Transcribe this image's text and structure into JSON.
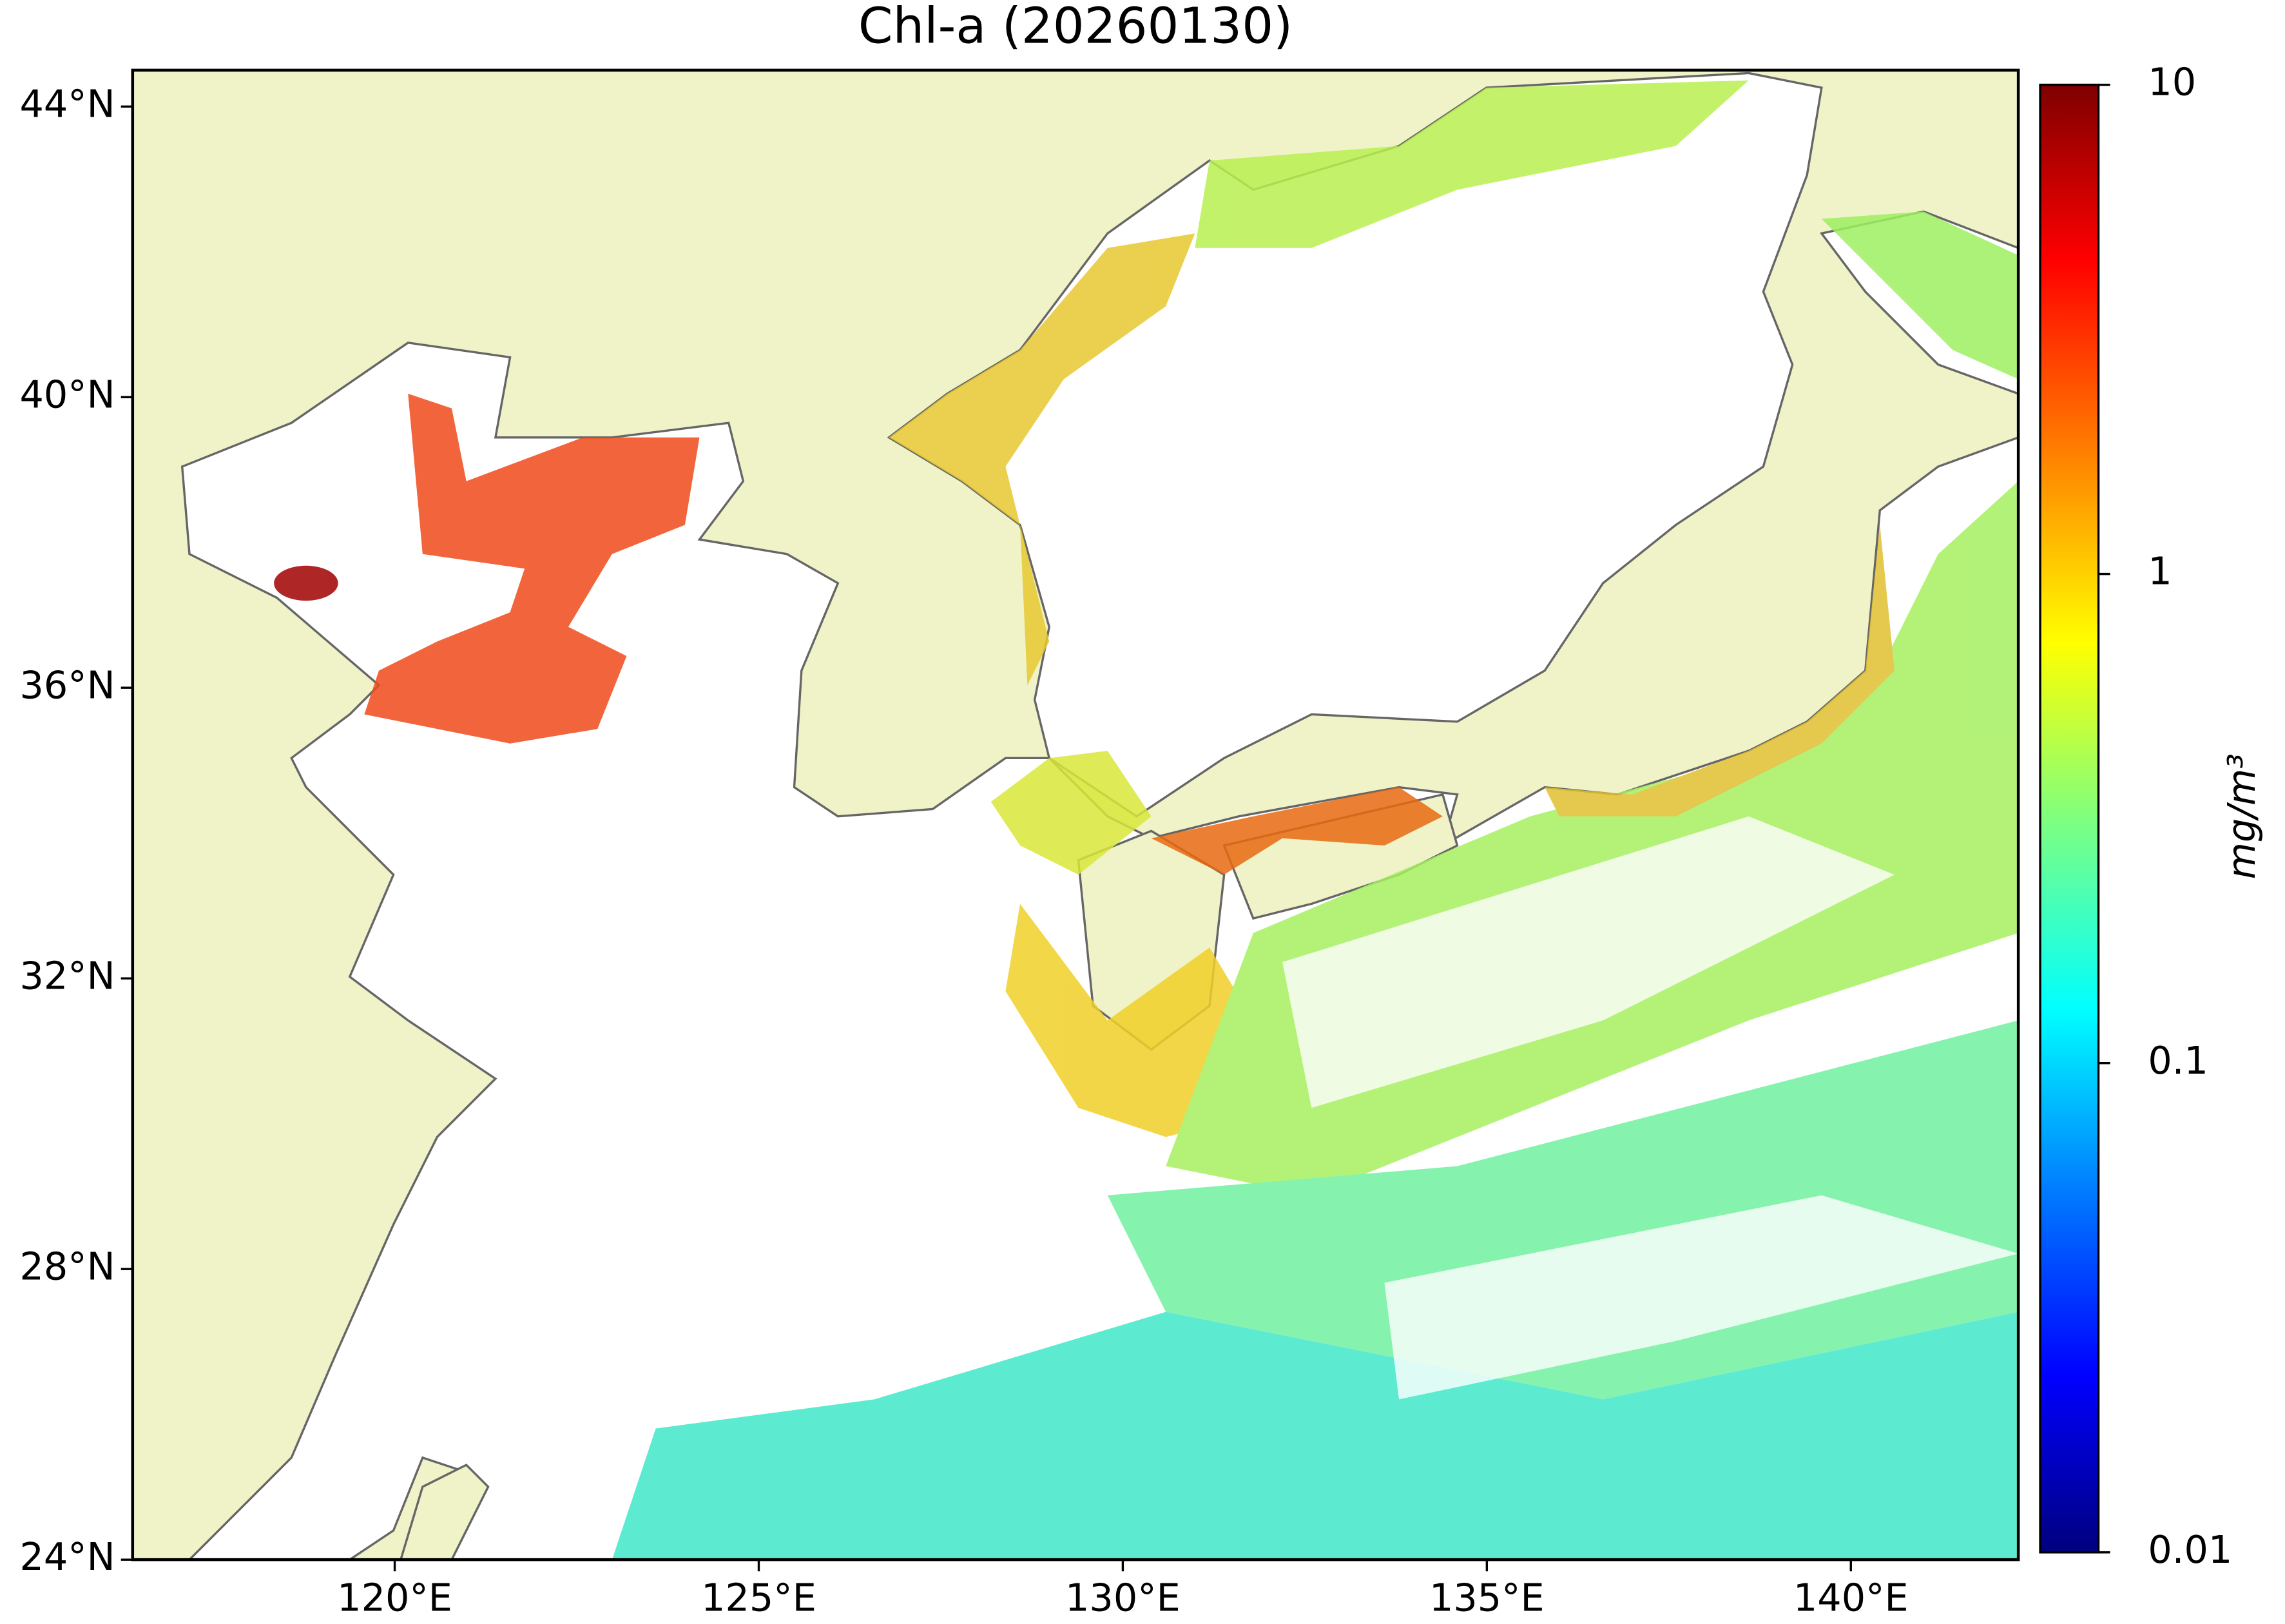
{
  "chart_data": {
    "type": "map",
    "title": "Chl-a (20260130)",
    "xlim": [
      116.4,
      142.3
    ],
    "ylim": [
      24,
      44.5
    ],
    "xticks": [
      {
        "value": 120,
        "label": "120°E"
      },
      {
        "value": 125,
        "label": "125°E"
      },
      {
        "value": 130,
        "label": "130°E"
      },
      {
        "value": 135,
        "label": "135°E"
      },
      {
        "value": 140,
        "label": "140°E"
      }
    ],
    "yticks": [
      {
        "value": 24,
        "label": "24°N"
      },
      {
        "value": 28,
        "label": "28°N"
      },
      {
        "value": 32,
        "label": "32°N"
      },
      {
        "value": 36,
        "label": "36°N"
      },
      {
        "value": 40,
        "label": "40°N"
      },
      {
        "value": 44,
        "label": "44°N"
      }
    ],
    "colorbar": {
      "label": "mg/m³",
      "scale": "log",
      "lim": [
        0.01,
        10
      ],
      "ticks": [
        0.01,
        0.1,
        1,
        10
      ]
    }
  }
}
